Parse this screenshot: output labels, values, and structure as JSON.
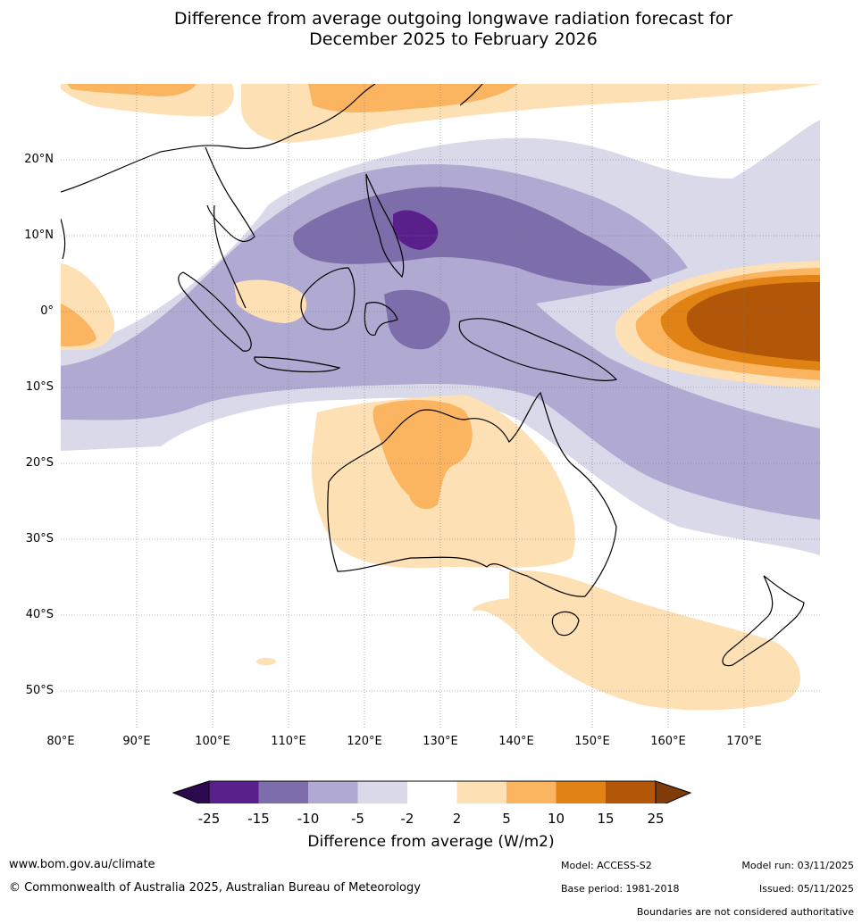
{
  "title": {
    "line1": "Difference from average outgoing longwave radiation forecast for",
    "line2": "December 2025 to February 2026"
  },
  "map": {
    "lat_labels": [
      "20°N",
      "10°N",
      "0°",
      "10°S",
      "20°S",
      "30°S",
      "40°S",
      "50°S"
    ],
    "lon_labels": [
      "80°E",
      "90°E",
      "100°E",
      "110°E",
      "120°E",
      "130°E",
      "140°E",
      "150°E",
      "160°E",
      "170°E"
    ],
    "lon_range": [
      80,
      180
    ],
    "lat_range": [
      -55,
      30
    ]
  },
  "colorbar": {
    "title": "Difference from average (W/m2)",
    "ticks": [
      "-25",
      "-15",
      "-10",
      "-5",
      "-2",
      "2",
      "5",
      "10",
      "15",
      "25"
    ],
    "colors": [
      "#591f8b",
      "#7d6daa",
      "#b0a9d2",
      "#d9d9ea",
      "#ffffff",
      "#fde0b4",
      "#fbb45f",
      "#e08314",
      "#b25608"
    ],
    "under_color": "#2d0a4e",
    "over_color": "#7f3b08"
  },
  "footer": {
    "website": "www.bom.gov.au/climate",
    "copyright": "© Commonwealth of Australia 2025, Australian Bureau of Meteorology",
    "model": "Model: ACCESS-S2",
    "base_period": "Base period: 1981-2018",
    "model_run": "Model run: 03/11/2025",
    "issued": "Issued: 05/11/2025",
    "disclaimer": "Boundaries are not considered authoritative"
  }
}
